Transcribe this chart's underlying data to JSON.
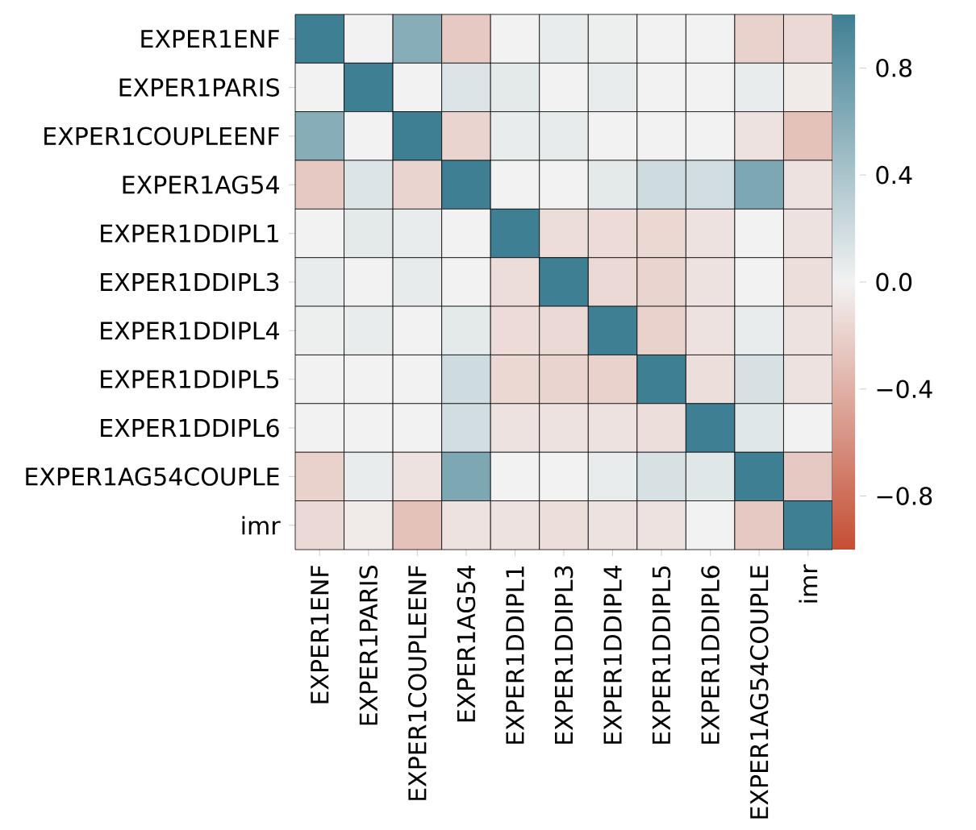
{
  "chart_data": {
    "type": "heatmap",
    "categories": [
      "EXPER1ENF",
      "EXPER1PARIS",
      "EXPER1COUPLEENF",
      "EXPER1AG54",
      "EXPER1DDIPL1",
      "EXPER1DDIPL3",
      "EXPER1DDIPL4",
      "EXPER1DDIPL5",
      "EXPER1DDIPL6",
      "EXPER1AG54COUPLE",
      "imr"
    ],
    "y_categories": [
      "EXPER1ENF",
      "EXPER1PARIS",
      "EXPER1COUPLEENF",
      "EXPER1AG54",
      "EXPER1DDIPL1",
      "EXPER1DDIPL3",
      "EXPER1DDIPL4",
      "EXPER1DDIPL5",
      "EXPER1DDIPL6",
      "EXPER1AG54COUPLE",
      "imr"
    ],
    "cells": [
      [
        1,
        0,
        0.6,
        -0.25,
        0,
        0.05,
        0.03,
        0,
        0,
        -0.2,
        -0.15
      ],
      [
        0,
        1,
        0,
        0.12,
        0.08,
        0,
        0.05,
        0,
        0,
        0.05,
        -0.05
      ],
      [
        0.6,
        0,
        1,
        -0.18,
        0.05,
        0.06,
        0,
        0,
        0,
        -0.1,
        -0.3
      ],
      [
        -0.25,
        0.12,
        -0.18,
        1,
        0,
        0,
        0.08,
        0.2,
        0.18,
        0.65,
        -0.1
      ],
      [
        0,
        0.08,
        0.05,
        0,
        1,
        -0.13,
        -0.14,
        -0.16,
        -0.1,
        0,
        -0.1
      ],
      [
        0.05,
        0,
        0.06,
        0,
        -0.13,
        1,
        -0.15,
        -0.18,
        -0.1,
        0,
        -0.12
      ],
      [
        0.03,
        0.05,
        0,
        0.08,
        -0.14,
        -0.15,
        1,
        -0.2,
        -0.1,
        0.05,
        -0.1
      ],
      [
        0,
        0,
        0,
        0.2,
        -0.16,
        -0.18,
        -0.2,
        1,
        -0.12,
        0.15,
        -0.1
      ],
      [
        0,
        0,
        0,
        0.18,
        -0.1,
        -0.1,
        -0.1,
        -0.12,
        1,
        0.1,
        0
      ],
      [
        -0.2,
        0.05,
        -0.1,
        0.65,
        0,
        0,
        0.05,
        0.15,
        0.1,
        1,
        -0.25
      ],
      [
        -0.15,
        -0.05,
        -0.3,
        -0.1,
        -0.1,
        -0.12,
        -0.1,
        -0.1,
        0,
        -0.25,
        1
      ]
    ],
    "clim": [
      -1,
      1
    ],
    "cticks": [
      {
        "value": -0.8,
        "label": "−0.8"
      },
      {
        "value": -0.4,
        "label": "−0.4"
      },
      {
        "value": 0,
        "label": "0.0"
      },
      0.4,
      0.8
    ]
  }
}
